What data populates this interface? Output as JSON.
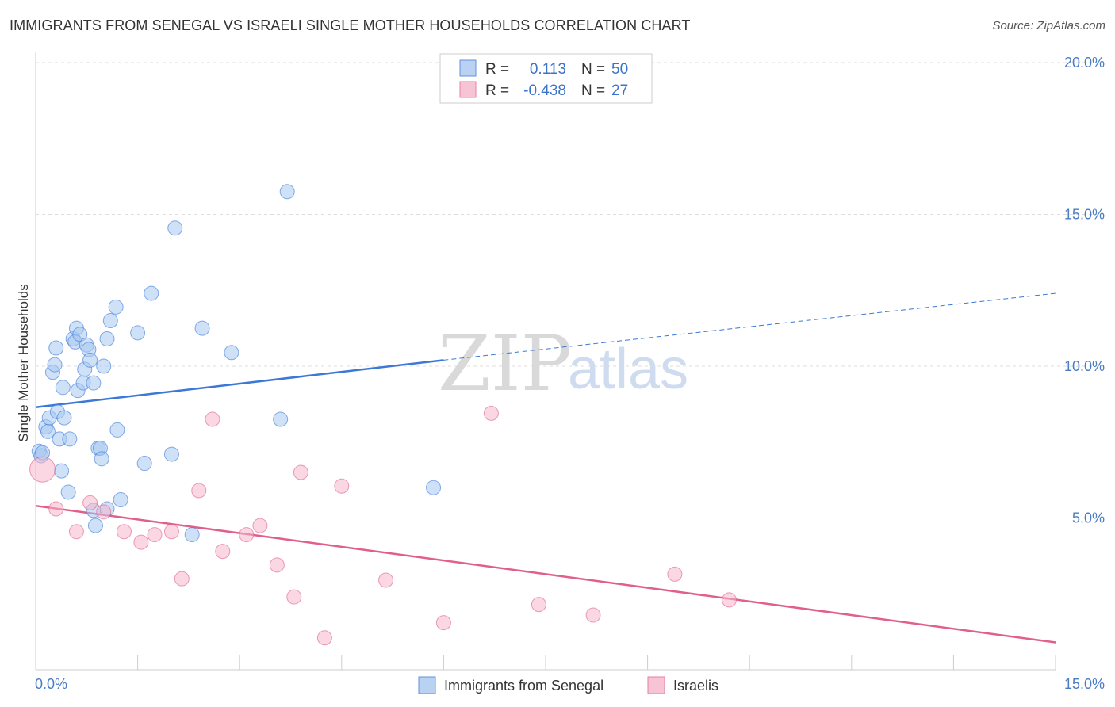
{
  "title": "IMMIGRANTS FROM SENEGAL VS ISRAELI SINGLE MOTHER HOUSEHOLDS CORRELATION CHART",
  "source": "Source: ZipAtlas.com",
  "watermark": {
    "zip": "ZIP",
    "atlas": "atlas"
  },
  "colors": {
    "blue": "#3b78d8",
    "blue_fill": "#a8c8f0",
    "pink": "#e0608a",
    "pink_fill": "#f6b6cb",
    "grid": "#dddddd",
    "tick_text": "#4a7cc4"
  },
  "legend": {
    "rows": [
      {
        "r_label": "R =",
        "r_value": "0.113",
        "n_label": "N =",
        "n_value": "50"
      },
      {
        "r_label": "R =",
        "r_value": "-0.438",
        "n_label": "N =",
        "n_value": "27"
      }
    ]
  },
  "chart_data": {
    "type": "scatter",
    "title": "IMMIGRANTS FROM SENEGAL VS ISRAELI SINGLE MOTHER HOUSEHOLDS CORRELATION CHART",
    "ylabel": "Single Mother Households",
    "xlabel": "",
    "xlim": [
      0,
      15
    ],
    "ylim": [
      0,
      20
    ],
    "x_tick_labels": [
      "0.0%",
      "15.0%"
    ],
    "y_ticks": [
      5,
      10,
      15,
      20
    ],
    "y_tick_labels": [
      "5.0%",
      "10.0%",
      "15.0%",
      "20.0%"
    ],
    "grid": true,
    "series": [
      {
        "name": "Immigrants from Senegal",
        "color": "#3b78d8",
        "R": 0.113,
        "N": 50,
        "trend": {
          "x0": 0,
          "y0": 8.65,
          "x1": 6.0,
          "y1": 10.2,
          "dashed_to_x": 15,
          "dashed_to_y": 12.4
        },
        "points": [
          [
            0.05,
            7.2
          ],
          [
            0.08,
            7.05
          ],
          [
            0.1,
            7.15
          ],
          [
            0.15,
            8.0
          ],
          [
            0.18,
            7.85
          ],
          [
            0.2,
            8.3
          ],
          [
            0.25,
            9.8
          ],
          [
            0.28,
            10.05
          ],
          [
            0.3,
            10.6
          ],
          [
            0.32,
            8.5
          ],
          [
            0.35,
            7.6
          ],
          [
            0.38,
            6.55
          ],
          [
            0.4,
            9.3
          ],
          [
            0.42,
            8.3
          ],
          [
            0.48,
            5.85
          ],
          [
            0.5,
            7.6
          ],
          [
            0.55,
            10.9
          ],
          [
            0.58,
            10.8
          ],
          [
            0.6,
            11.25
          ],
          [
            0.62,
            9.2
          ],
          [
            0.65,
            11.05
          ],
          [
            0.7,
            9.45
          ],
          [
            0.72,
            9.9
          ],
          [
            0.75,
            10.7
          ],
          [
            0.78,
            10.55
          ],
          [
            0.8,
            10.2
          ],
          [
            0.85,
            9.45
          ],
          [
            0.88,
            4.75
          ],
          [
            0.92,
            7.3
          ],
          [
            0.95,
            7.3
          ],
          [
            0.97,
            6.95
          ],
          [
            1.0,
            10.0
          ],
          [
            1.05,
            5.3
          ],
          [
            1.05,
            10.9
          ],
          [
            1.1,
            11.5
          ],
          [
            1.18,
            11.95
          ],
          [
            1.2,
            7.9
          ],
          [
            1.25,
            5.6
          ],
          [
            1.5,
            11.1
          ],
          [
            1.6,
            6.8
          ],
          [
            1.7,
            12.4
          ],
          [
            2.0,
            7.1
          ],
          [
            2.05,
            14.55
          ],
          [
            2.3,
            4.45
          ],
          [
            2.45,
            11.25
          ],
          [
            2.88,
            10.45
          ],
          [
            3.6,
            8.25
          ],
          [
            3.7,
            15.75
          ],
          [
            5.85,
            6.0
          ],
          [
            0.85,
            5.25
          ]
        ]
      },
      {
        "name": "Israelis",
        "color": "#e0608a",
        "R": -0.438,
        "N": 27,
        "trend": {
          "x0": 0,
          "y0": 5.4,
          "x1": 15,
          "y1": 0.9
        },
        "points": [
          [
            0.1,
            6.6
          ],
          [
            0.3,
            5.3
          ],
          [
            0.6,
            4.55
          ],
          [
            0.8,
            5.5
          ],
          [
            1.0,
            5.2
          ],
          [
            1.3,
            4.55
          ],
          [
            1.55,
            4.2
          ],
          [
            1.75,
            4.45
          ],
          [
            2.0,
            4.55
          ],
          [
            2.15,
            3.0
          ],
          [
            2.4,
            5.9
          ],
          [
            2.6,
            8.25
          ],
          [
            2.75,
            3.9
          ],
          [
            3.1,
            4.45
          ],
          [
            3.3,
            4.75
          ],
          [
            3.55,
            3.45
          ],
          [
            3.8,
            2.4
          ],
          [
            3.9,
            6.5
          ],
          [
            4.25,
            1.05
          ],
          [
            4.5,
            6.05
          ],
          [
            5.15,
            2.95
          ],
          [
            6.0,
            1.55
          ],
          [
            6.7,
            8.45
          ],
          [
            7.4,
            2.15
          ],
          [
            8.2,
            1.8
          ],
          [
            9.4,
            3.15
          ],
          [
            10.2,
            2.3
          ]
        ]
      }
    ]
  }
}
